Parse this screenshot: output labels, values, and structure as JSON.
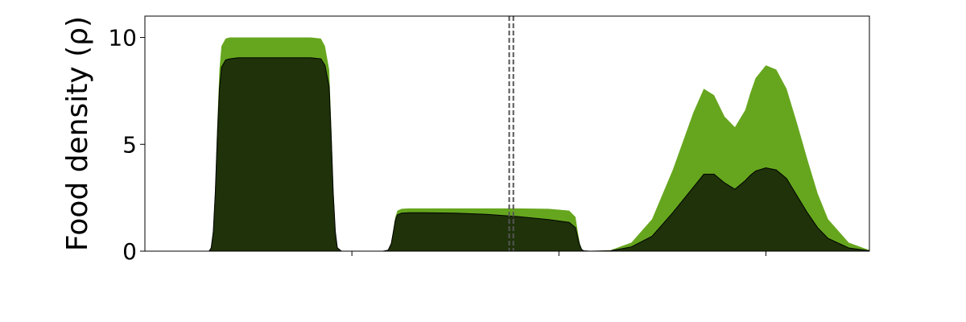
{
  "chart_data": {
    "type": "area",
    "title": "",
    "xlabel": "",
    "ylabel": "Food density (ρ)",
    "xlim": [
      0,
      7
    ],
    "ylim": [
      0,
      11
    ],
    "yticks": [
      0,
      5,
      10
    ],
    "ytick_labels": [
      "0",
      "5",
      "10"
    ],
    "xticks": [
      2,
      4,
      6
    ],
    "xtick_labels": [
      "",
      "",
      ""
    ],
    "grid": false,
    "legend": "none",
    "colors": {
      "outer": "#66a61e",
      "inner": "#1f320a",
      "vline": "#555555"
    },
    "vlines": [
      3.52,
      3.56
    ],
    "series": [
      {
        "x": [
          0,
          0.62,
          0.64,
          0.66,
          0.68,
          0.7,
          0.72,
          0.74,
          0.78,
          0.82,
          0.9,
          1.0,
          1.2,
          1.4,
          1.6,
          1.7,
          1.74,
          1.78,
          1.8,
          1.82,
          1.84,
          1.86,
          1.9,
          2.3,
          2.35,
          2.38,
          2.4,
          2.42,
          2.44,
          2.48,
          2.55,
          2.7,
          3.0,
          3.3,
          3.6,
          3.9,
          4.1,
          4.16,
          4.18,
          4.2,
          4.22,
          4.24,
          4.3,
          4.5,
          4.7,
          4.9,
          5.1,
          5.3,
          5.4,
          5.5,
          5.6,
          5.7,
          5.8,
          5.85,
          5.9,
          6.0,
          6.1,
          6.2,
          6.3,
          6.4,
          6.5,
          6.6,
          6.8,
          7.0
        ],
        "values": [
          0,
          0,
          0.2,
          1.0,
          3.0,
          6.0,
          8.5,
          9.6,
          9.95,
          10.0,
          10.0,
          10.0,
          10.0,
          10.0,
          10.0,
          9.95,
          9.6,
          8.5,
          6.0,
          3.0,
          1.0,
          0.2,
          0,
          0,
          0.05,
          0.4,
          1.0,
          1.6,
          1.9,
          1.98,
          2.0,
          2.0,
          2.0,
          2.0,
          2.0,
          1.98,
          1.9,
          1.6,
          1.0,
          0.4,
          0.1,
          0.02,
          0,
          0.05,
          0.4,
          1.5,
          3.8,
          6.5,
          7.6,
          7.3,
          6.3,
          5.8,
          6.6,
          7.4,
          8.1,
          8.7,
          8.5,
          7.6,
          6.0,
          4.3,
          2.7,
          1.5,
          0.4,
          0.05
        ]
      },
      {
        "x": [
          0,
          0.62,
          0.64,
          0.66,
          0.68,
          0.7,
          0.72,
          0.74,
          0.78,
          0.82,
          0.9,
          1.0,
          1.2,
          1.4,
          1.6,
          1.7,
          1.74,
          1.78,
          1.8,
          1.82,
          1.84,
          1.86,
          1.9,
          2.3,
          2.35,
          2.38,
          2.4,
          2.42,
          2.44,
          2.48,
          2.55,
          2.7,
          3.0,
          3.3,
          3.6,
          3.9,
          4.1,
          4.16,
          4.18,
          4.2,
          4.22,
          4.24,
          4.3,
          4.5,
          4.7,
          4.9,
          5.1,
          5.3,
          5.4,
          5.5,
          5.6,
          5.7,
          5.8,
          5.85,
          5.9,
          6.0,
          6.1,
          6.2,
          6.3,
          6.4,
          6.5,
          6.6,
          6.8,
          7.0
        ],
        "values": [
          0,
          0,
          0.15,
          0.9,
          2.7,
          5.4,
          7.6,
          8.6,
          8.95,
          9.0,
          9.05,
          9.05,
          9.05,
          9.05,
          9.05,
          9.0,
          8.7,
          7.7,
          5.4,
          2.7,
          0.9,
          0.15,
          0,
          0,
          0.05,
          0.35,
          0.9,
          1.45,
          1.7,
          1.78,
          1.8,
          1.8,
          1.78,
          1.72,
          1.62,
          1.48,
          1.35,
          1.1,
          0.7,
          0.3,
          0.08,
          0.02,
          0,
          0.02,
          0.2,
          0.7,
          1.8,
          3.0,
          3.6,
          3.6,
          3.2,
          2.9,
          3.3,
          3.55,
          3.75,
          3.9,
          3.8,
          3.4,
          2.6,
          1.8,
          1.1,
          0.6,
          0.15,
          0.02
        ]
      }
    ]
  }
}
